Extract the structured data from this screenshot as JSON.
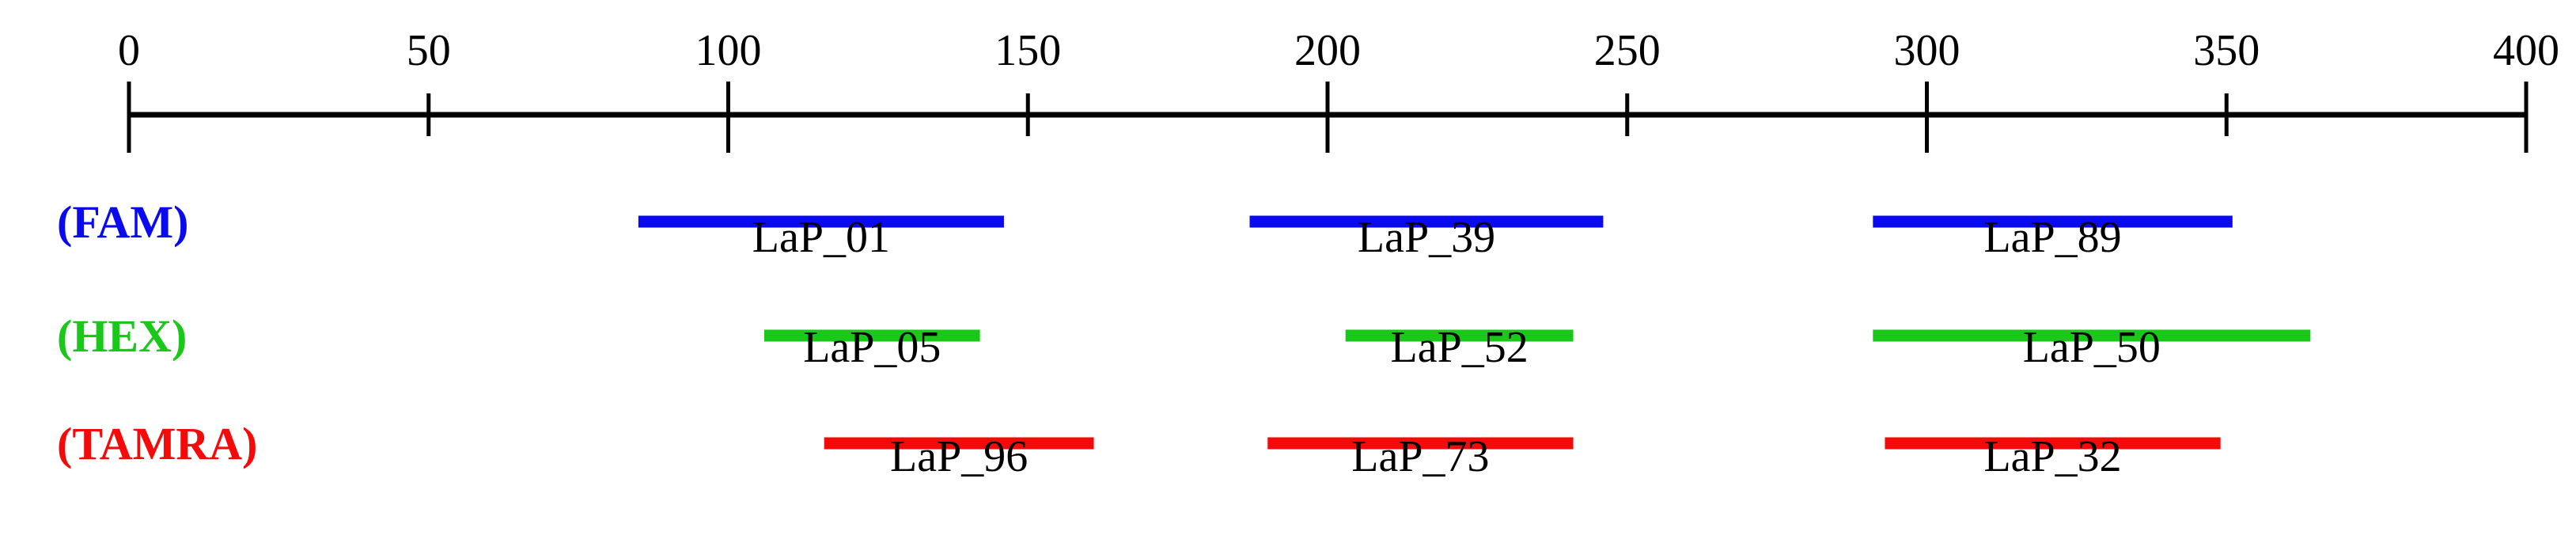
{
  "axis": {
    "min": 0,
    "max": 400,
    "ticks": [
      0,
      50,
      100,
      150,
      200,
      250,
      300,
      350,
      400
    ],
    "tick_labels": [
      "0",
      "50",
      "100",
      "150",
      "200",
      "250",
      "300",
      "350",
      "400"
    ]
  },
  "channels": [
    {
      "key": "fam",
      "label": "(FAM)",
      "color": "#0a0aef",
      "probes": [
        {
          "name": "LaP_01",
          "start": 85,
          "end": 146
        },
        {
          "name": "LaP_39",
          "start": 187,
          "end": 246
        },
        {
          "name": "LaP_89",
          "start": 291,
          "end": 351
        }
      ]
    },
    {
      "key": "hex",
      "label": "(HEX)",
      "color": "#19c819",
      "probes": [
        {
          "name": "LaP_05",
          "start": 106,
          "end": 142
        },
        {
          "name": "LaP_52",
          "start": 203,
          "end": 241
        },
        {
          "name": "LaP_50",
          "start": 291,
          "end": 364
        }
      ]
    },
    {
      "key": "tamra",
      "label": "(TAMRA)",
      "color": "#f50a0a",
      "probes": [
        {
          "name": "LaP_96",
          "start": 116,
          "end": 161
        },
        {
          "name": "LaP_73",
          "start": 190,
          "end": 241
        },
        {
          "name": "LaP_32",
          "start": 293,
          "end": 349
        }
      ]
    }
  ]
}
